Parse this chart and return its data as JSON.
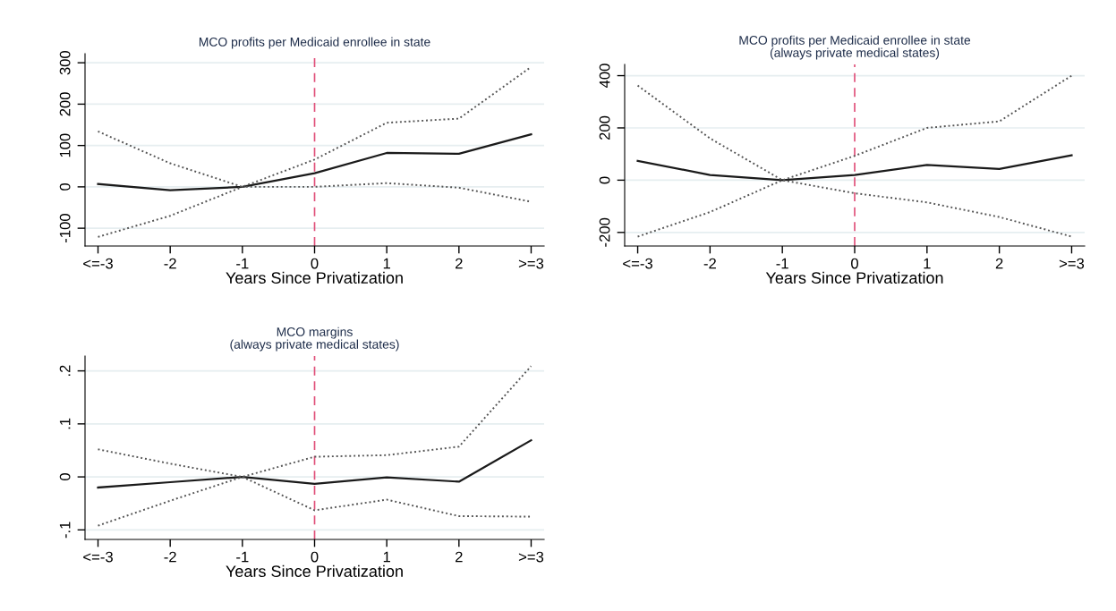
{
  "chart_data": [
    {
      "type": "line",
      "title": "MCO profits per Medicaid enrollee in state",
      "xlabel": "Years Since Privatization",
      "categories": [
        "<=-3",
        "-2",
        "-1",
        "0",
        "1",
        "2",
        ">=3"
      ],
      "series": [
        {
          "color": "#1a1a1a",
          "line_style": "solid",
          "values": [
            7,
            -8,
            0,
            33,
            82,
            80,
            127
          ]
        },
        {
          "color": "#555555",
          "line_style": "dotted",
          "values": [
            134,
            57,
            0,
            66,
            155,
            165,
            290
          ]
        },
        {
          "color": "#555555",
          "line_style": "dotted",
          "values": [
            -121,
            -70,
            0,
            0,
            9,
            -2,
            -36
          ]
        }
      ],
      "ylim": [
        -143,
        322
      ],
      "yticks": [
        -100,
        0,
        100,
        200,
        300
      ],
      "grid": "y",
      "ref_lines": [
        {
          "axis": "x",
          "value": "0",
          "color": "#e0507a",
          "line_style": "dashed"
        }
      ]
    },
    {
      "type": "line",
      "title": "MCO profits per Medicaid enrollee in state\n(always private medical states)",
      "xlabel": "Years Since Privatization",
      "categories": [
        "<=-3",
        "-2",
        "-1",
        "0",
        "1",
        "2",
        ">=3"
      ],
      "series": [
        {
          "color": "#1a1a1a",
          "line_style": "solid",
          "values": [
            74,
            20,
            0,
            20,
            58,
            43,
            95
          ]
        },
        {
          "color": "#555555",
          "line_style": "dotted",
          "values": [
            -216,
            -122,
            0,
            93,
            200,
            225,
            400
          ]
        },
        {
          "color": "#555555",
          "line_style": "dotted",
          "values": [
            362,
            160,
            0,
            -50,
            -85,
            -141,
            -216
          ]
        }
      ],
      "ylim": [
        -252,
        443
      ],
      "yticks": [
        -200,
        0,
        200,
        400
      ],
      "grid": "y",
      "ref_lines": [
        {
          "axis": "x",
          "value": "0",
          "color": "#e0507a",
          "line_style": "dashed"
        }
      ]
    },
    {
      "type": "line",
      "title": "MCO margins\n(always private medical states)",
      "xlabel": "Years Since Privatization",
      "categories": [
        "<=-3",
        "-2",
        "-1",
        "0",
        "1",
        "2",
        ">=3"
      ],
      "series": [
        {
          "color": "#1a1a1a",
          "line_style": "solid",
          "values": [
            -0.02,
            -0.01,
            0,
            -0.013,
            -0.001,
            -0.009,
            0.069
          ]
        },
        {
          "color": "#555555",
          "line_style": "dotted",
          "values": [
            0.052,
            0.025,
            0,
            0.038,
            0.041,
            0.057,
            0.209
          ]
        },
        {
          "color": "#555555",
          "line_style": "dotted",
          "values": [
            -0.092,
            -0.045,
            0,
            -0.063,
            -0.043,
            -0.074,
            -0.075
          ]
        }
      ],
      "ylim": [
        -0.118,
        0.228
      ],
      "yticks": [
        {
          "value": -0.1,
          "label": "-.1"
        },
        0,
        {
          "value": 0.1,
          "label": ".1"
        },
        {
          "value": 0.2,
          "label": ".2"
        }
      ],
      "grid": "y",
      "ref_lines": [
        {
          "axis": "x",
          "value": "0",
          "color": "#e0507a",
          "line_style": "dashed"
        }
      ]
    }
  ]
}
